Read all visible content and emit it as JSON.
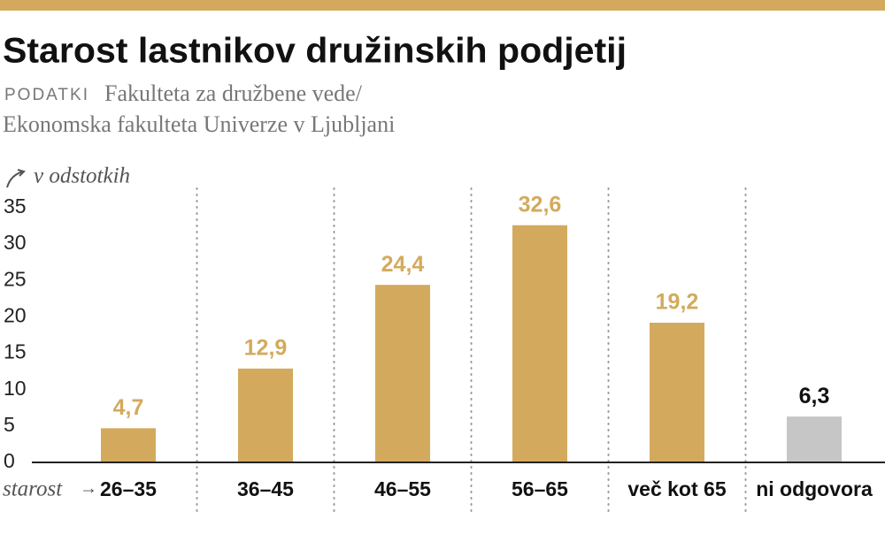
{
  "chart_data": {
    "type": "bar",
    "title": "Starost lastnikov družinskih podjetij",
    "source_label": "PODATKI",
    "source": [
      "Fakulteta za družbene vede/",
      "Ekonomska fakulteta Univerze v Ljubljani"
    ],
    "y_label": "v odstotkih",
    "x_label": "starost",
    "categories": [
      "26–35",
      "36–45",
      "46–55",
      "56–65",
      "več kot 65",
      "ni odgovora"
    ],
    "values": [
      4.7,
      12.9,
      24.4,
      32.6,
      19.2,
      6.3
    ],
    "value_labels": [
      "4,7",
      "12,9",
      "24,4",
      "32,6",
      "19,2",
      "6,3"
    ],
    "colors": [
      "#d3aa5d",
      "#d3aa5d",
      "#d3aa5d",
      "#d3aa5d",
      "#d3aa5d",
      "#c6c6c6"
    ],
    "value_label_colors": [
      "#d3aa5d",
      "#d3aa5d",
      "#d3aa5d",
      "#d3aa5d",
      "#d3aa5d",
      "#111111"
    ],
    "ylim": [
      0,
      35
    ],
    "yticks": [
      0,
      5,
      10,
      15,
      20,
      25,
      30,
      35
    ]
  }
}
